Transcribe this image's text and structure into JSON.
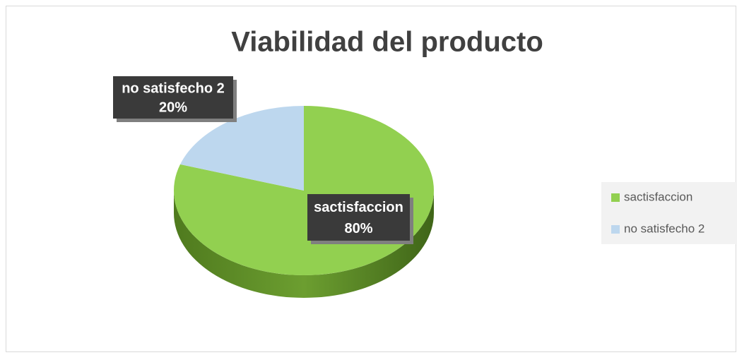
{
  "chart_data": {
    "type": "pie",
    "title": "Viabilidad del producto",
    "categories": [
      "sactisfaccion",
      "no satisfecho 2"
    ],
    "values": [
      80,
      20
    ],
    "value_labels": [
      "80%",
      "20%"
    ],
    "colors": [
      "#92d050",
      "#bdd7ee"
    ],
    "legend": "right"
  }
}
